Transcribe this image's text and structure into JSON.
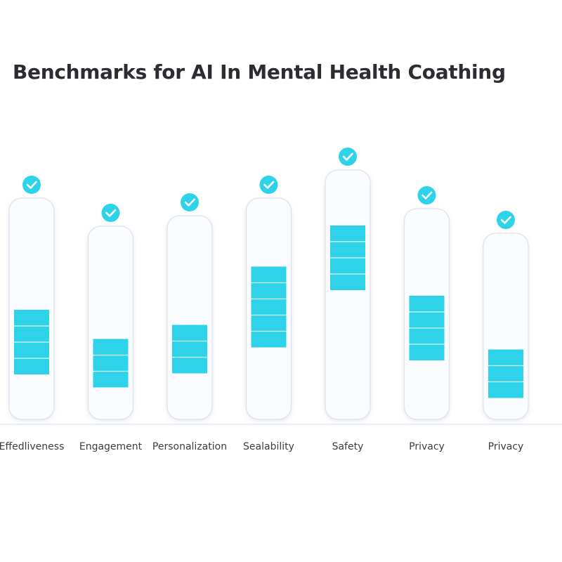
{
  "chart_data": {
    "type": "bar",
    "title": "Benchmarks for AI In Mental Health Coathing",
    "xlabel": "",
    "ylabel": "",
    "categories": [
      "Effedliveness",
      "Engagement",
      "Personalization",
      "Sealability",
      "Safety",
      "Privacy",
      "Privacy"
    ],
    "values": [
      4,
      3,
      3,
      5,
      4,
      4,
      3
    ],
    "column_heights": [
      6.3,
      5.5,
      5.8,
      6.3,
      7.1,
      6.0,
      5.3
    ],
    "bar_center": [
      2.2,
      1.6,
      2.0,
      3.2,
      4.6,
      2.6,
      1.3
    ],
    "check_marks": [
      true,
      true,
      true,
      true,
      true,
      true,
      true
    ],
    "grid": false,
    "legend": "none",
    "colors": {
      "fill": "#2ed3ea",
      "segment_line": "#d9f6fb",
      "column_fill": "#fbfcff",
      "column_stroke": "#dde3ec",
      "check_fill": "#2ed3ea",
      "check_mark": "#ffffff",
      "baseline": "#e9edf2",
      "label": "#3a3d42",
      "title": "#2b2d31"
    }
  }
}
